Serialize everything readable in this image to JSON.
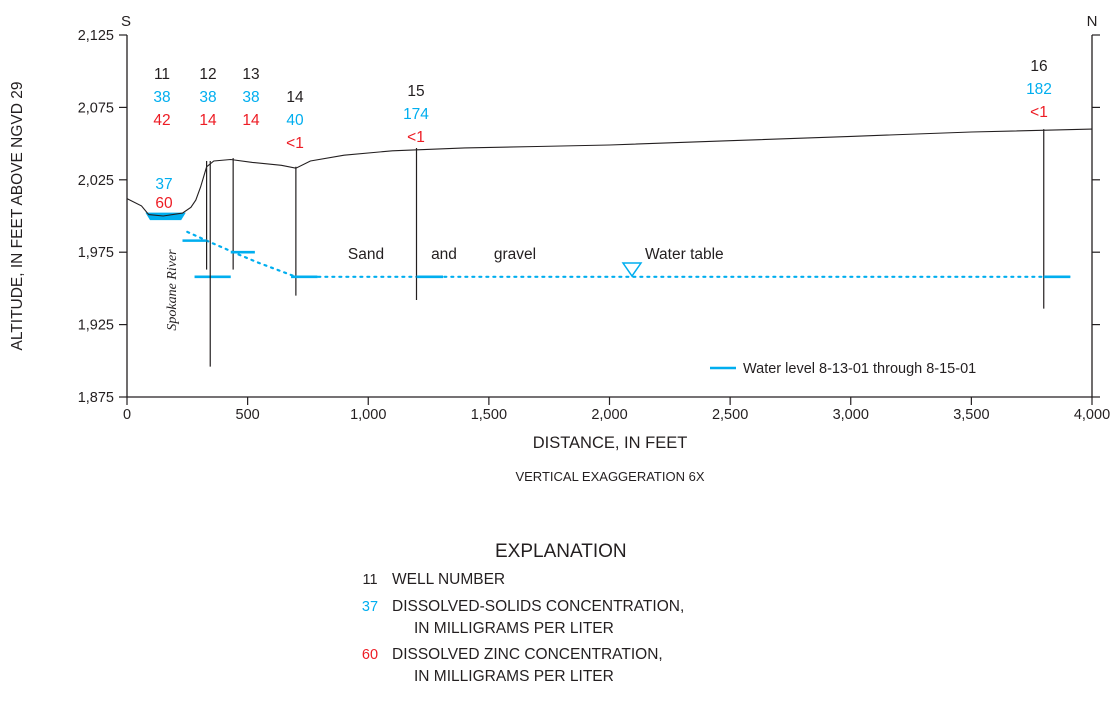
{
  "colors": {
    "black": "#231f20",
    "blue": "#00aeef",
    "red": "#ed1c24",
    "river_fill": "#00aeef"
  },
  "compass": {
    "south": "S",
    "north": "N"
  },
  "axes": {
    "y_label": "ALTITUDE, IN FEET ABOVE NGVD 29",
    "x_label": "DISTANCE, IN FEET",
    "x_sublabel": "VERTICAL EXAGGERATION 6X",
    "x_range": [
      0,
      4000
    ],
    "y_range": [
      1875,
      2125
    ],
    "x_ticks": [
      {
        "value": 0,
        "label": "0"
      },
      {
        "value": 500,
        "label": "500"
      },
      {
        "value": 1000,
        "label": "1,000"
      },
      {
        "value": 1500,
        "label": "1,500"
      },
      {
        "value": 2000,
        "label": "2,000"
      },
      {
        "value": 2500,
        "label": "2,500"
      },
      {
        "value": 3000,
        "label": "3,000"
      },
      {
        "value": 3500,
        "label": "3,500"
      },
      {
        "value": 4000,
        "label": "4,000"
      }
    ],
    "y_ticks": [
      {
        "value": 1875,
        "label": "1,875"
      },
      {
        "value": 1925,
        "label": "1,925"
      },
      {
        "value": 1975,
        "label": "1,975"
      },
      {
        "value": 2025,
        "label": "2,025"
      },
      {
        "value": 2075,
        "label": "2,075"
      },
      {
        "value": 2125,
        "label": "2,125"
      }
    ]
  },
  "labels": {
    "river": "Spokane River",
    "sand": "Sand",
    "and": "and",
    "gravel": "gravel",
    "water_table": "Water table"
  },
  "river_sample": {
    "dissolved_solids": "37",
    "zinc": "60"
  },
  "wells": [
    {
      "number": "11",
      "dissolved_solids": "38",
      "zinc": "42",
      "distance": 330,
      "top": 2038,
      "bottom": 1963,
      "water_level": 1958,
      "wl_x0": 280,
      "wl_x1": 430
    },
    {
      "number": "12",
      "dissolved_solids": "38",
      "zinc": "14",
      "distance": 345,
      "top": 2038,
      "bottom": 1896,
      "water_level": 1983,
      "wl_x0": 230,
      "wl_x1": 330
    },
    {
      "number": "13",
      "dissolved_solids": "38",
      "zinc": "14",
      "distance": 440,
      "top": 2040,
      "bottom": 1963,
      "water_level": 1975,
      "wl_x0": 430,
      "wl_x1": 530
    },
    {
      "number": "14",
      "dissolved_solids": "40",
      "zinc": "<1",
      "distance": 700,
      "top": 2034,
      "bottom": 1945,
      "water_level": 1958,
      "wl_x0": 680,
      "wl_x1": 790
    },
    {
      "number": "15",
      "dissolved_solids": "174",
      "zinc": "<1",
      "distance": 1200,
      "top": 2047,
      "bottom": 1942,
      "water_level": 1958,
      "wl_x0": 1200,
      "wl_x1": 1310
    },
    {
      "number": "16",
      "dissolved_solids": "182",
      "zinc": "<1",
      "distance": 3800,
      "top": 2060,
      "bottom": 1936,
      "water_level": 1958,
      "wl_x0": 3800,
      "wl_x1": 3910
    }
  ],
  "land_surface": [
    [
      0,
      2012
    ],
    [
      60,
      2007
    ],
    [
      90,
      2001
    ],
    [
      150,
      2000
    ],
    [
      230,
      2002
    ],
    [
      265,
      2006
    ],
    [
      285,
      2011
    ],
    [
      305,
      2020
    ],
    [
      330,
      2034
    ],
    [
      360,
      2038
    ],
    [
      430,
      2039
    ],
    [
      520,
      2037
    ],
    [
      640,
      2035
    ],
    [
      700,
      2033
    ],
    [
      760,
      2038
    ],
    [
      900,
      2042
    ],
    [
      1100,
      2045
    ],
    [
      1400,
      2047
    ],
    [
      1700,
      2048
    ],
    [
      2000,
      2049
    ],
    [
      2500,
      2052
    ],
    [
      3000,
      2055
    ],
    [
      3500,
      2058
    ],
    [
      4000,
      2060
    ]
  ],
  "water_table": [
    [
      250,
      1989
    ],
    [
      330,
      1983
    ],
    [
      440,
      1975
    ],
    [
      540,
      1968
    ],
    [
      700,
      1958
    ],
    [
      3910,
      1958
    ]
  ],
  "legend": {
    "water_level": "Water level 8-13-01 through 8-15-01"
  },
  "explanation": {
    "title": "EXPLANATION",
    "items": [
      {
        "key": "11",
        "color_role": "black",
        "line1": "WELL NUMBER",
        "line2": ""
      },
      {
        "key": "37",
        "color_role": "blue",
        "line1": "DISSOLVED-SOLIDS CONCENTRATION,",
        "line2": "IN MILLIGRAMS PER LITER"
      },
      {
        "key": "60",
        "color_role": "red",
        "line1": "DISSOLVED ZINC CONCENTRATION,",
        "line2": "IN MILLIGRAMS PER LITER"
      }
    ]
  }
}
